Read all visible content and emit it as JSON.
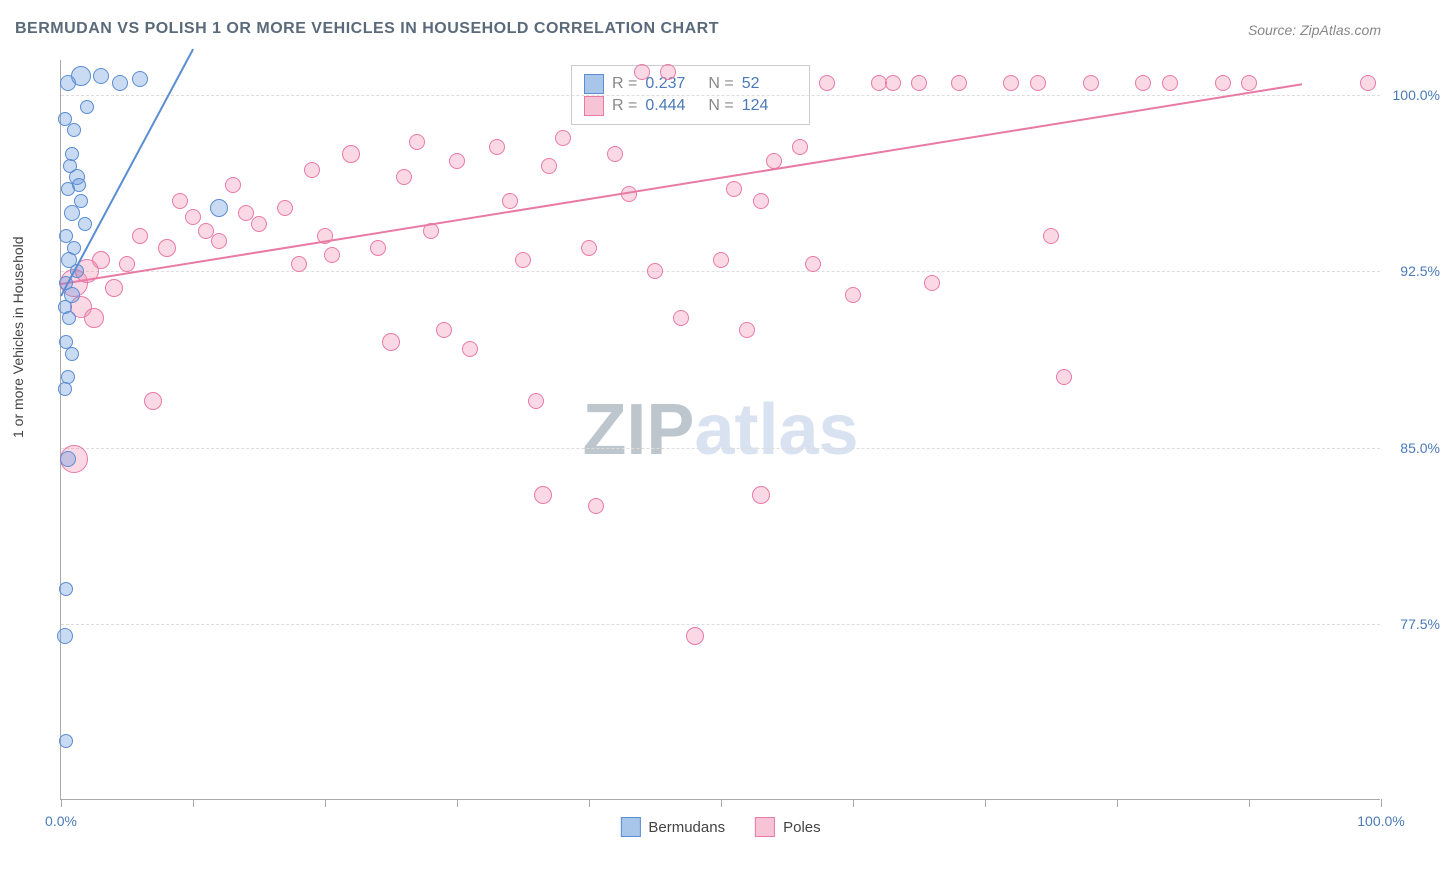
{
  "title": "BERMUDAN VS POLISH 1 OR MORE VEHICLES IN HOUSEHOLD CORRELATION CHART",
  "source": "Source: ZipAtlas.com",
  "ylabel": "1 or more Vehicles in Household",
  "watermark_zip": "ZIP",
  "watermark_atlas": "atlas",
  "chart": {
    "type": "scatter",
    "xlim": [
      0,
      100
    ],
    "ylim": [
      70,
      101.5
    ],
    "background_color": "#ffffff",
    "grid_color": "#dddddd",
    "yticks": [
      {
        "value": 100.0,
        "label": "100.0%"
      },
      {
        "value": 92.5,
        "label": "92.5%"
      },
      {
        "value": 85.0,
        "label": "85.0%"
      },
      {
        "value": 77.5,
        "label": "77.5%"
      }
    ],
    "xticks_major": [
      {
        "value": 0,
        "label": "0.0%"
      },
      {
        "value": 100,
        "label": "100.0%"
      }
    ],
    "xticks_minor": [
      10,
      20,
      30,
      40,
      50,
      60,
      70,
      80,
      90
    ]
  },
  "series": {
    "bermudans": {
      "name": "Bermudans",
      "color_fill": "rgba(100,150,220,0.35)",
      "color_stroke": "#5b8dd2",
      "swatch_fill": "#a8c5ea",
      "swatch_stroke": "#5b8dd2",
      "R_label": "R =",
      "R": "0.237",
      "N_label": "N =",
      "N": "52",
      "trend": {
        "x1": 0,
        "y1": 91.5,
        "x2": 10,
        "y2": 102
      },
      "points": [
        {
          "x": 0.5,
          "y": 100.5,
          "r": 8
        },
        {
          "x": 1.5,
          "y": 100.8,
          "r": 10
        },
        {
          "x": 3,
          "y": 100.8,
          "r": 8
        },
        {
          "x": 4.5,
          "y": 100.5,
          "r": 8
        },
        {
          "x": 6,
          "y": 100.7,
          "r": 8
        },
        {
          "x": 0.3,
          "y": 99,
          "r": 7
        },
        {
          "x": 1,
          "y": 98.5,
          "r": 7
        },
        {
          "x": 0.8,
          "y": 97.5,
          "r": 7
        },
        {
          "x": 1.2,
          "y": 96.5,
          "r": 8
        },
        {
          "x": 0.5,
          "y": 96,
          "r": 7
        },
        {
          "x": 1.5,
          "y": 95.5,
          "r": 7
        },
        {
          "x": 0.8,
          "y": 95,
          "r": 8
        },
        {
          "x": 1.8,
          "y": 94.5,
          "r": 7
        },
        {
          "x": 0.4,
          "y": 94,
          "r": 7
        },
        {
          "x": 1,
          "y": 93.5,
          "r": 7
        },
        {
          "x": 12,
          "y": 95.2,
          "r": 9
        },
        {
          "x": 0.6,
          "y": 93,
          "r": 8
        },
        {
          "x": 1.2,
          "y": 92.5,
          "r": 7
        },
        {
          "x": 0.4,
          "y": 92,
          "r": 7
        },
        {
          "x": 0.8,
          "y": 91.5,
          "r": 8
        },
        {
          "x": 0.3,
          "y": 91,
          "r": 7
        },
        {
          "x": 0.6,
          "y": 90.5,
          "r": 7
        },
        {
          "x": 0.4,
          "y": 89.5,
          "r": 7
        },
        {
          "x": 0.8,
          "y": 89,
          "r": 7
        },
        {
          "x": 0.5,
          "y": 88,
          "r": 7
        },
        {
          "x": 0.3,
          "y": 87.5,
          "r": 7
        },
        {
          "x": 0.5,
          "y": 84.5,
          "r": 8
        },
        {
          "x": 0.4,
          "y": 79,
          "r": 7
        },
        {
          "x": 0.3,
          "y": 77,
          "r": 8
        },
        {
          "x": 0.4,
          "y": 72.5,
          "r": 7
        },
        {
          "x": 2,
          "y": 99.5,
          "r": 7
        },
        {
          "x": 0.7,
          "y": 97,
          "r": 7
        },
        {
          "x": 1.4,
          "y": 96.2,
          "r": 7
        }
      ]
    },
    "poles": {
      "name": "Poles",
      "color_fill": "rgba(240,130,170,0.3)",
      "color_stroke": "#e87aa5",
      "swatch_fill": "#f7c4d6",
      "swatch_stroke": "#e87aa5",
      "R_label": "R =",
      "R": "0.444",
      "N_label": "N =",
      "N": "124",
      "trend": {
        "x1": 0,
        "y1": 92,
        "x2": 94,
        "y2": 100.5
      },
      "points": [
        {
          "x": 1,
          "y": 92,
          "r": 14
        },
        {
          "x": 2,
          "y": 92.5,
          "r": 12
        },
        {
          "x": 1.5,
          "y": 91,
          "r": 11
        },
        {
          "x": 3,
          "y": 93,
          "r": 9
        },
        {
          "x": 4,
          "y": 91.8,
          "r": 9
        },
        {
          "x": 2.5,
          "y": 90.5,
          "r": 10
        },
        {
          "x": 1,
          "y": 84.5,
          "r": 14
        },
        {
          "x": 5,
          "y": 92.8,
          "r": 8
        },
        {
          "x": 6,
          "y": 94,
          "r": 8
        },
        {
          "x": 8,
          "y": 93.5,
          "r": 9
        },
        {
          "x": 10,
          "y": 94.8,
          "r": 8
        },
        {
          "x": 9,
          "y": 95.5,
          "r": 8
        },
        {
          "x": 11,
          "y": 94.2,
          "r": 8
        },
        {
          "x": 12,
          "y": 93.8,
          "r": 8
        },
        {
          "x": 7,
          "y": 87,
          "r": 9
        },
        {
          "x": 14,
          "y": 95,
          "r": 8
        },
        {
          "x": 15,
          "y": 94.5,
          "r": 8
        },
        {
          "x": 17,
          "y": 95.2,
          "r": 8
        },
        {
          "x": 18,
          "y": 92.8,
          "r": 8
        },
        {
          "x": 19,
          "y": 96.8,
          "r": 8
        },
        {
          "x": 20,
          "y": 94,
          "r": 8
        },
        {
          "x": 22,
          "y": 97.5,
          "r": 9
        },
        {
          "x": 20.5,
          "y": 93.2,
          "r": 8
        },
        {
          "x": 24,
          "y": 93.5,
          "r": 8
        },
        {
          "x": 25,
          "y": 89.5,
          "r": 9
        },
        {
          "x": 26,
          "y": 96.5,
          "r": 8
        },
        {
          "x": 27,
          "y": 98,
          "r": 8
        },
        {
          "x": 28,
          "y": 94.2,
          "r": 8
        },
        {
          "x": 29,
          "y": 90,
          "r": 8
        },
        {
          "x": 30,
          "y": 97.2,
          "r": 8
        },
        {
          "x": 31,
          "y": 89.2,
          "r": 8
        },
        {
          "x": 33,
          "y": 97.8,
          "r": 8
        },
        {
          "x": 34,
          "y": 95.5,
          "r": 8
        },
        {
          "x": 35,
          "y": 93,
          "r": 8
        },
        {
          "x": 36,
          "y": 87,
          "r": 8
        },
        {
          "x": 37,
          "y": 97,
          "r": 8
        },
        {
          "x": 36.5,
          "y": 83,
          "r": 9
        },
        {
          "x": 38,
          "y": 98.2,
          "r": 8
        },
        {
          "x": 40,
          "y": 93.5,
          "r": 8
        },
        {
          "x": 40.5,
          "y": 82.5,
          "r": 8
        },
        {
          "x": 42,
          "y": 97.5,
          "r": 8
        },
        {
          "x": 43,
          "y": 95.8,
          "r": 8
        },
        {
          "x": 45,
          "y": 92.5,
          "r": 8
        },
        {
          "x": 47,
          "y": 90.5,
          "r": 8
        },
        {
          "x": 48,
          "y": 77,
          "r": 9
        },
        {
          "x": 50,
          "y": 93,
          "r": 8
        },
        {
          "x": 51,
          "y": 96,
          "r": 8
        },
        {
          "x": 52,
          "y": 90,
          "r": 8
        },
        {
          "x": 54,
          "y": 97.2,
          "r": 8
        },
        {
          "x": 53,
          "y": 83,
          "r": 9
        },
        {
          "x": 56,
          "y": 97.8,
          "r": 8
        },
        {
          "x": 57,
          "y": 92.8,
          "r": 8
        },
        {
          "x": 58,
          "y": 100.5,
          "r": 8
        },
        {
          "x": 60,
          "y": 91.5,
          "r": 8
        },
        {
          "x": 62,
          "y": 100.5,
          "r": 8
        },
        {
          "x": 63,
          "y": 100.5,
          "r": 8
        },
        {
          "x": 65,
          "y": 100.5,
          "r": 8
        },
        {
          "x": 66,
          "y": 92,
          "r": 8
        },
        {
          "x": 68,
          "y": 100.5,
          "r": 8
        },
        {
          "x": 72,
          "y": 100.5,
          "r": 8
        },
        {
          "x": 74,
          "y": 100.5,
          "r": 8
        },
        {
          "x": 75,
          "y": 94,
          "r": 8
        },
        {
          "x": 76,
          "y": 88,
          "r": 8
        },
        {
          "x": 78,
          "y": 100.5,
          "r": 8
        },
        {
          "x": 82,
          "y": 100.5,
          "r": 8
        },
        {
          "x": 84,
          "y": 100.5,
          "r": 8
        },
        {
          "x": 88,
          "y": 100.5,
          "r": 8
        },
        {
          "x": 90,
          "y": 100.5,
          "r": 8
        },
        {
          "x": 99,
          "y": 100.5,
          "r": 8
        },
        {
          "x": 13,
          "y": 96.2,
          "r": 8
        },
        {
          "x": 53,
          "y": 95.5,
          "r": 8
        },
        {
          "x": 44,
          "y": 101,
          "r": 8
        },
        {
          "x": 46,
          "y": 101,
          "r": 8
        }
      ]
    }
  }
}
